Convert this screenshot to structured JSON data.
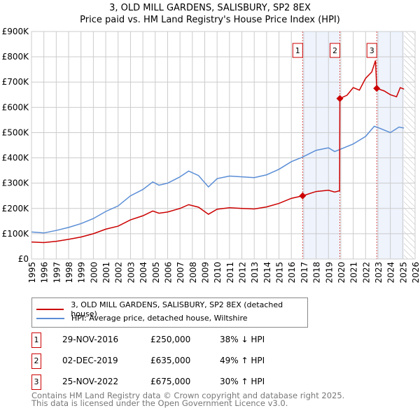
{
  "chart_data": {
    "type": "line",
    "title": "3, OLD MILL GARDENS, SALISBURY, SP2 8EX",
    "subtitle": "Price paid vs. HM Land Registry's House Price Index (HPI)",
    "xlim": [
      1995,
      2026
    ],
    "ylim": [
      0,
      900000
    ],
    "x_ticks": [
      "1995",
      "1996",
      "1997",
      "1998",
      "1999",
      "2000",
      "2001",
      "2002",
      "2003",
      "2004",
      "2005",
      "2006",
      "2007",
      "2008",
      "2009",
      "2010",
      "2011",
      "2012",
      "2013",
      "2014",
      "2015",
      "2016",
      "2017",
      "2018",
      "2019",
      "2020",
      "2021",
      "2022",
      "2023",
      "2024",
      "2025",
      "2026"
    ],
    "y_ticks": [
      "£0",
      "£100K",
      "£200K",
      "£300K",
      "£400K",
      "£500K",
      "£600K",
      "£700K",
      "£800K",
      "£900K"
    ],
    "grid": true,
    "series": [
      {
        "name": "3, OLD MILL GARDENS, SALISBURY, SP2 8EX (detached house)",
        "color": "#cc0000",
        "x": [
          1995,
          1996,
          1997,
          1998,
          1999,
          2000,
          2001,
          2002,
          2003,
          2004,
          2004.8,
          2005.3,
          2006,
          2007,
          2007.7,
          2008.5,
          2009.3,
          2010,
          2011,
          2012,
          2013,
          2014,
          2015,
          2016,
          2016.91,
          2018,
          2019,
          2019.5,
          2019.9,
          2019.92,
          2020.5,
          2021,
          2021.5,
          2022,
          2022.5,
          2022.8,
          2022.9,
          2023.5,
          2024,
          2024.5,
          2024.8,
          2025.1
        ],
        "y": [
          67000,
          65000,
          70000,
          78000,
          87000,
          100000,
          118000,
          130000,
          155000,
          171000,
          190000,
          181000,
          186000,
          200000,
          215000,
          205000,
          177000,
          197000,
          203000,
          200000,
          198000,
          206000,
          220000,
          240000,
          250000,
          267000,
          272000,
          265000,
          270000,
          635000,
          648000,
          678000,
          668000,
          715000,
          740000,
          785000,
          675000,
          665000,
          650000,
          642000,
          678000,
          672000
        ]
      },
      {
        "name": "HPI: Average price, detached house, Wiltshire",
        "color": "#5b8ed6",
        "x": [
          1995,
          1996,
          1997,
          1998,
          1999,
          2000,
          2001,
          2002,
          2003,
          2004,
          2004.8,
          2005.3,
          2006,
          2007,
          2007.7,
          2008.5,
          2009.3,
          2010,
          2011,
          2012,
          2013,
          2014,
          2015,
          2016,
          2016.9,
          2018,
          2019,
          2019.5,
          2020,
          2021,
          2022,
          2022.7,
          2023,
          2024,
          2024.7,
          2025.1
        ],
        "y": [
          107000,
          103000,
          113000,
          125000,
          140000,
          160000,
          188000,
          210000,
          250000,
          275000,
          305000,
          292000,
          300000,
          325000,
          348000,
          330000,
          285000,
          318000,
          328000,
          325000,
          322000,
          333000,
          355000,
          385000,
          403000,
          430000,
          440000,
          425000,
          435000,
          455000,
          485000,
          525000,
          520000,
          500000,
          522000,
          518000
        ]
      }
    ],
    "sales": [
      {
        "label": "1",
        "x": 2016.91,
        "y": 250000,
        "date": "29-NOV-2016",
        "price": "£250,000",
        "hpi": "38% ↓ HPI"
      },
      {
        "label": "2",
        "x": 2019.92,
        "y": 635000,
        "date": "02-DEC-2019",
        "price": "£635,000",
        "hpi": "49% ↑ HPI"
      },
      {
        "label": "3",
        "x": 2022.9,
        "y": 675000,
        "date": "25-NOV-2022",
        "price": "£675,000",
        "hpi": "30% ↑ HPI"
      }
    ],
    "shaded_ranges": [
      [
        2016.91,
        2019.92
      ],
      [
        2022.9,
        2025.1
      ]
    ],
    "forecast_from": 2025.1
  },
  "footer": {
    "line1": "Contains HM Land Registry data © Crown copyright and database right 2025.",
    "line2": "This data is licensed under the Open Government Licence v3.0."
  }
}
